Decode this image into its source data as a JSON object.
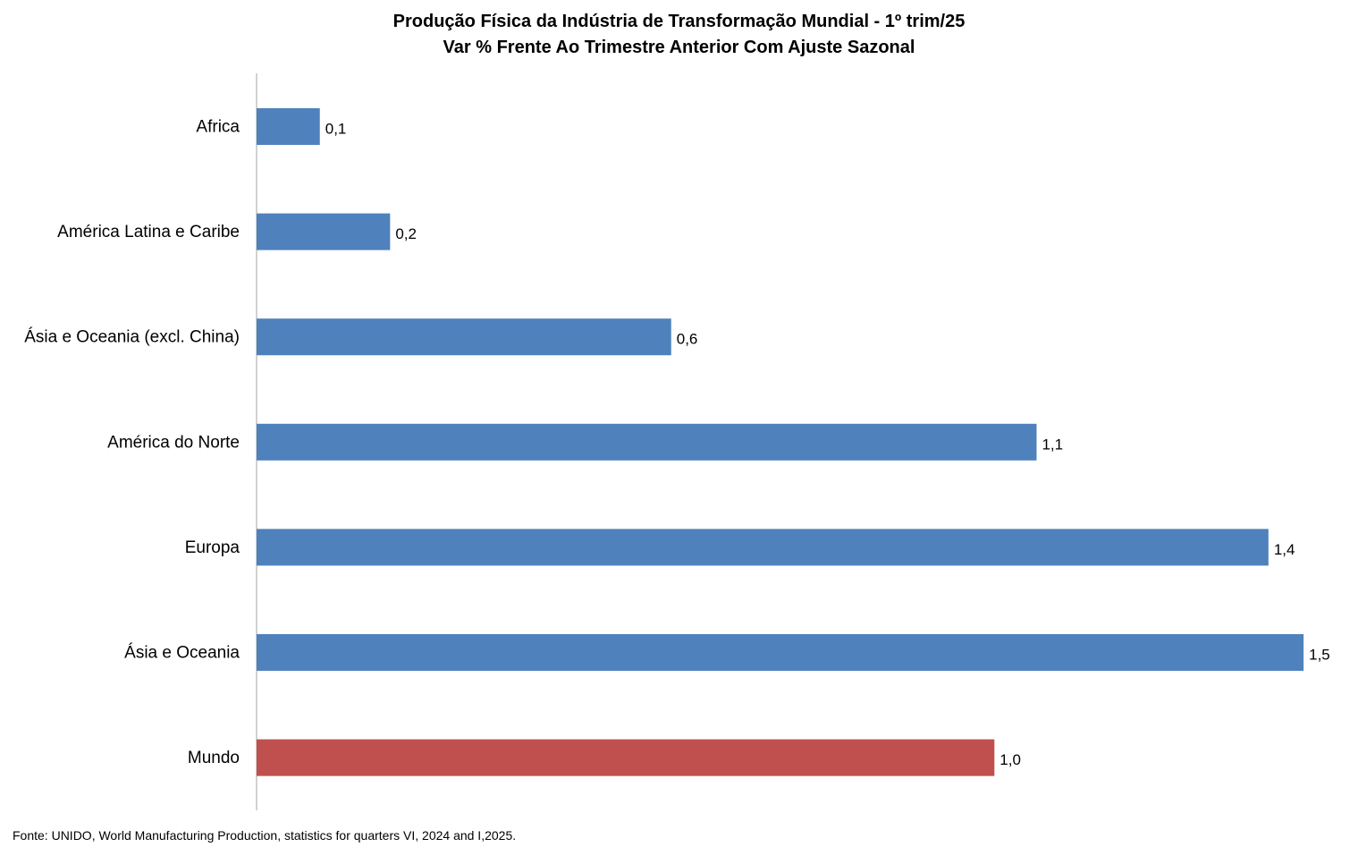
{
  "chart_data": {
    "type": "bar",
    "orientation": "horizontal",
    "title": "Produção Física da Indústria de Transformação Mundial - 1º trim/25",
    "subtitle": "Var % Frente Ao Trimestre Anterior Com Ajuste Sazonal",
    "xlabel": "",
    "ylabel": "",
    "xlim": [
      0,
      1.5
    ],
    "grid": false,
    "legend": "none",
    "categories": [
      "Africa",
      "América Latina e Caribe",
      "Ásia e Oceania (excl. China)",
      "América do Norte",
      "Europa",
      "Ásia e Oceania",
      "Mundo"
    ],
    "values": [
      0.09,
      0.19,
      0.59,
      1.11,
      1.44,
      1.49,
      1.05
    ],
    "value_labels": [
      "0,1",
      "0,2",
      "0,6",
      "1,1",
      "1,4",
      "1,5",
      "1,0"
    ],
    "colors": [
      "#4F81BD",
      "#4F81BD",
      "#4F81BD",
      "#4F81BD",
      "#4F81BD",
      "#4F81BD",
      "#C0504D"
    ]
  },
  "source": "Fonte: UNIDO, World Manufacturing Production,  statistics for quarters VI, 2024 and I,2025."
}
